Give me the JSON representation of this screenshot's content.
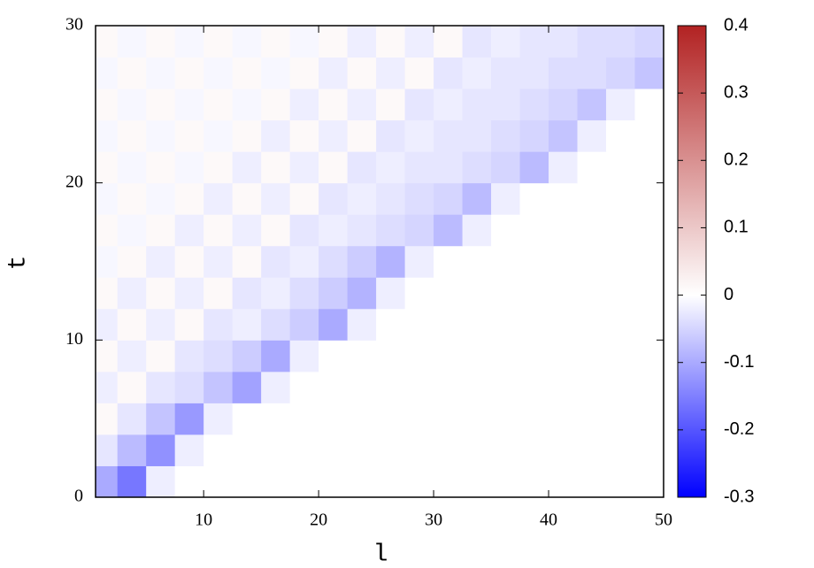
{
  "chart_data": {
    "type": "heatmap",
    "xlabel": "l",
    "ylabel": "t",
    "xlim": [
      0.6,
      50
    ],
    "ylim": [
      0,
      30
    ],
    "xticks": [
      10,
      20,
      30,
      40,
      50
    ],
    "yticks": [
      0,
      10,
      20,
      30
    ],
    "xbins": [
      0,
      2.5,
      5,
      7.5,
      10,
      12.5,
      15,
      17.5,
      20,
      22.5,
      25,
      27.5,
      30,
      32.5,
      35,
      37.5,
      40,
      42.5,
      45,
      47.5,
      50
    ],
    "ybins": [
      0,
      2,
      4,
      6,
      8,
      10,
      12,
      14,
      16,
      18,
      20,
      22,
      24,
      26,
      28,
      30
    ],
    "values": [
      [
        -0.1,
        -0.16,
        -0.02,
        0,
        0,
        0,
        0,
        0,
        0,
        0,
        0,
        0,
        0,
        0,
        0,
        0,
        0,
        0,
        0,
        0
      ],
      [
        -0.03,
        -0.08,
        -0.13,
        -0.02,
        0,
        0,
        0,
        0,
        0,
        0,
        0,
        0,
        0,
        0,
        0,
        0,
        0,
        0,
        0,
        0
      ],
      [
        0.01,
        -0.03,
        -0.07,
        -0.12,
        -0.02,
        0,
        0,
        0,
        0,
        0,
        0,
        0,
        0,
        0,
        0,
        0,
        0,
        0,
        0,
        0
      ],
      [
        -0.02,
        0.01,
        -0.03,
        -0.04,
        -0.07,
        -0.11,
        -0.02,
        0,
        0,
        0,
        0,
        0,
        0,
        0,
        0,
        0,
        0,
        0,
        0,
        0
      ],
      [
        0.01,
        -0.02,
        0.01,
        -0.03,
        -0.04,
        -0.06,
        -0.1,
        -0.02,
        0,
        0,
        0,
        0,
        0,
        0,
        0,
        0,
        0,
        0,
        0,
        0
      ],
      [
        -0.02,
        0.01,
        -0.02,
        0.01,
        -0.03,
        -0.02,
        -0.04,
        -0.06,
        -0.1,
        -0.02,
        0,
        0,
        0,
        0,
        0,
        0,
        0,
        0,
        0,
        0
      ],
      [
        0.01,
        -0.02,
        0.01,
        -0.02,
        0.01,
        -0.03,
        -0.02,
        -0.04,
        -0.06,
        -0.09,
        -0.02,
        0,
        0,
        0,
        0,
        0,
        0,
        0,
        0,
        0
      ],
      [
        -0.01,
        0.01,
        -0.02,
        0.01,
        -0.02,
        0.01,
        -0.03,
        -0.02,
        -0.04,
        -0.06,
        -0.09,
        -0.02,
        0,
        0,
        0,
        0,
        0,
        0,
        0,
        0
      ],
      [
        0.01,
        -0.01,
        0.01,
        -0.02,
        0.01,
        -0.02,
        0.01,
        -0.03,
        -0.02,
        -0.03,
        -0.04,
        -0.05,
        -0.08,
        -0.02,
        0,
        0,
        0,
        0,
        0,
        0
      ],
      [
        -0.01,
        0.01,
        -0.01,
        0.01,
        -0.02,
        0.01,
        -0.02,
        0.01,
        -0.03,
        -0.02,
        -0.03,
        -0.04,
        -0.05,
        -0.08,
        -0.02,
        0,
        0,
        0,
        0,
        0
      ],
      [
        0.01,
        -0.01,
        0.01,
        -0.01,
        0.01,
        -0.02,
        0.01,
        -0.02,
        0.01,
        -0.03,
        -0.02,
        -0.03,
        -0.03,
        -0.04,
        -0.05,
        -0.08,
        -0.02,
        0,
        0,
        0
      ],
      [
        -0.01,
        0.01,
        -0.01,
        0.01,
        -0.01,
        0.01,
        -0.02,
        0.01,
        -0.02,
        0.01,
        -0.03,
        -0.02,
        -0.03,
        -0.03,
        -0.04,
        -0.05,
        -0.07,
        -0.02,
        0,
        0
      ],
      [
        0.01,
        -0.01,
        0.01,
        -0.01,
        0.01,
        -0.01,
        0.01,
        -0.02,
        0.01,
        -0.02,
        0.01,
        -0.03,
        -0.02,
        -0.03,
        -0.03,
        -0.04,
        -0.05,
        -0.07,
        -0.02,
        0
      ],
      [
        -0.01,
        0.01,
        -0.01,
        0.01,
        -0.01,
        0.01,
        -0.01,
        0.01,
        -0.02,
        0.01,
        -0.02,
        0.01,
        -0.03,
        -0.02,
        -0.03,
        -0.03,
        -0.04,
        -0.04,
        -0.05,
        -0.07
      ],
      [
        0.01,
        -0.01,
        0.01,
        -0.01,
        0.01,
        -0.01,
        0.01,
        -0.01,
        0.01,
        -0.02,
        0.01,
        -0.02,
        0.01,
        -0.03,
        -0.02,
        -0.03,
        -0.03,
        -0.04,
        -0.04,
        -0.05
      ]
    ],
    "clim": [
      -0.3,
      0.4
    ],
    "cticks": [
      -0.3,
      -0.2,
      -0.1,
      0,
      0.1,
      0.2,
      0.3,
      0.4
    ],
    "colormap": [
      "#0000ff",
      "#ffffff",
      "#b22222"
    ]
  }
}
